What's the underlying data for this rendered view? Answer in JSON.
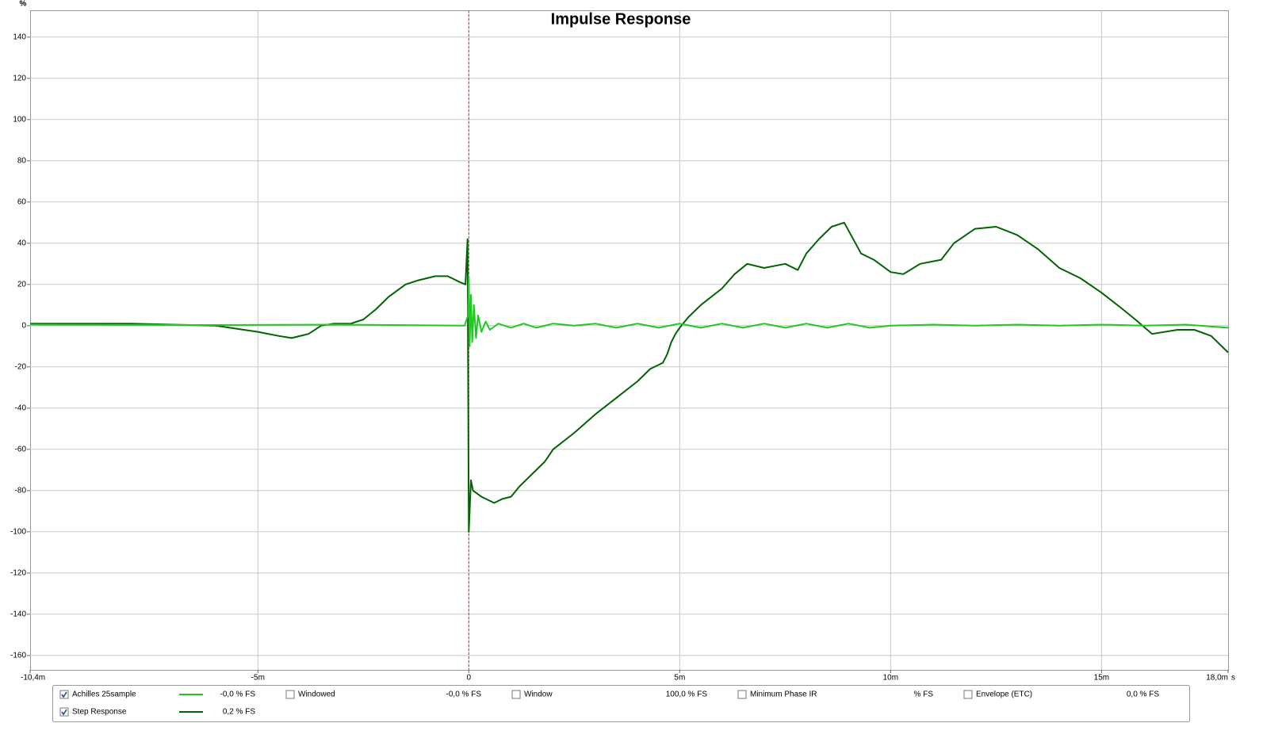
{
  "chart_data": {
    "type": "line",
    "title": "Impulse Response",
    "y_unit": "%",
    "x_unit": "s",
    "xlim": [
      -10.4,
      18.0
    ],
    "ylim": [
      -167,
      153
    ],
    "xticks": [
      {
        "value": -10.4,
        "label": "-10,4m"
      },
      {
        "value": -5,
        "label": "-5m"
      },
      0,
      {
        "value": 5,
        "label": "5m"
      },
      {
        "value": 10,
        "label": "10m"
      },
      {
        "value": 15,
        "label": "15m"
      },
      {
        "value": 18.0,
        "label": "18,0m"
      }
    ],
    "yticks": [
      -160,
      -140,
      -120,
      -100,
      -80,
      -60,
      -40,
      -20,
      0,
      20,
      40,
      60,
      80,
      100,
      120,
      140
    ],
    "grid": true,
    "series": [
      {
        "name": "Achilles 25sample",
        "color": "#22c822",
        "checked": true,
        "readout": "-0,0 % FS",
        "x": [
          -10.4,
          -6,
          -3,
          -0.1,
          -0.02,
          0,
          0.02,
          0.05,
          0.08,
          0.12,
          0.17,
          0.22,
          0.3,
          0.4,
          0.5,
          0.7,
          1,
          1.3,
          1.6,
          2,
          2.5,
          3,
          3.5,
          4,
          4.5,
          5,
          5.5,
          6,
          6.5,
          7,
          7.5,
          8,
          8.5,
          9,
          9.5,
          10,
          11,
          12,
          13,
          14,
          15,
          16,
          17,
          18
        ],
        "values": [
          0.5,
          0.3,
          0.5,
          0,
          5,
          24,
          -10,
          15,
          -8,
          10,
          -6,
          5,
          -3,
          2,
          -2,
          1,
          -1,
          1,
          -1,
          1,
          0,
          1,
          -1,
          1,
          -1,
          1,
          -1,
          1,
          -1,
          1,
          -1,
          1,
          -1,
          1,
          -1,
          0,
          0.5,
          0,
          0.5,
          0,
          0.5,
          0,
          0.5,
          -1
        ]
      },
      {
        "name": "Step Response",
        "color": "#006400",
        "checked": true,
        "readout": "0,2 % FS",
        "x": [
          -10.4,
          -8,
          -6,
          -5,
          -4.5,
          -4.2,
          -3.8,
          -3.5,
          -3.2,
          -2.8,
          -2.5,
          -2.2,
          -1.9,
          -1.5,
          -1.2,
          -0.8,
          -0.5,
          -0.2,
          -0.08,
          -0.03,
          0,
          0.05,
          0.1,
          0.3,
          0.6,
          0.8,
          1,
          1.2,
          1.5,
          1.8,
          2,
          2.5,
          3,
          3.5,
          4,
          4.3,
          4.6,
          4.7,
          4.8,
          4.9,
          5,
          5.2,
          5.5,
          6,
          6.3,
          6.6,
          7,
          7.5,
          7.8,
          8,
          8.3,
          8.6,
          8.9,
          9.3,
          9.6,
          10,
          10.3,
          10.7,
          11.2,
          11.5,
          12,
          12.5,
          13,
          13.5,
          14,
          14.5,
          15,
          15.5,
          15.8,
          16.2,
          16.8,
          17.2,
          17.6,
          18
        ],
        "values": [
          1,
          1,
          0,
          -3,
          -5,
          -6,
          -4,
          0,
          1,
          1,
          3,
          8,
          14,
          20,
          22,
          24,
          24,
          21,
          20,
          42,
          -100,
          -75,
          -80,
          -83,
          -86,
          -84,
          -83,
          -78,
          -72,
          -66,
          -60,
          -52,
          -43,
          -35,
          -27,
          -21,
          -18,
          -14,
          -8,
          -4,
          -1,
          4,
          10,
          18,
          25,
          30,
          28,
          30,
          27,
          35,
          42,
          48,
          50,
          35,
          32,
          26,
          25,
          30,
          32,
          40,
          47,
          48,
          44,
          37,
          28,
          23,
          16,
          8,
          3,
          -4,
          -2,
          -2,
          -5,
          -13
        ]
      }
    ],
    "controls": [
      {
        "label": "Windowed",
        "color": "#33cc33",
        "checked": false,
        "readout": "-0,0 % FS"
      },
      {
        "label": "Window",
        "color": "#0000cc",
        "checked": false,
        "readout": "100,0 % FS"
      },
      {
        "label": "Minimum Phase IR",
        "color": "#a0a0a0",
        "checked": false,
        "readout": "% FS"
      },
      {
        "label": "Envelope (ETC)",
        "color": "#008800",
        "checked": false,
        "readout": "0,0 % FS"
      }
    ]
  }
}
